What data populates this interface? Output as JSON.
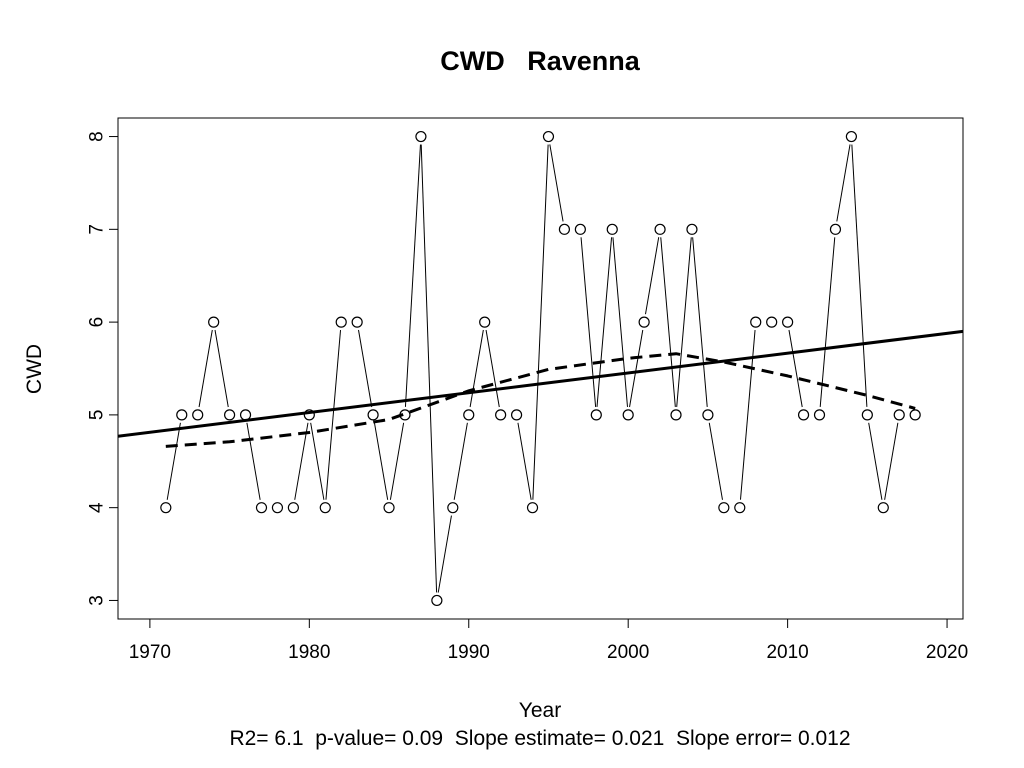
{
  "chart_data": {
    "type": "line",
    "title": "CWD   Ravenna",
    "xlabel": "Year",
    "ylabel": "CWD",
    "xlim": [
      1968,
      2021
    ],
    "ylim": [
      2.8,
      8.2
    ],
    "x_ticks": [
      1970,
      1980,
      1990,
      2000,
      2010,
      2020
    ],
    "y_ticks": [
      3,
      4,
      5,
      6,
      7,
      8
    ],
    "grid": false,
    "legend": "none",
    "series": [
      {
        "style": "points-and-lines",
        "x": [
          1971,
          1972,
          1973,
          1974,
          1975,
          1976,
          1977,
          1978,
          1979,
          1980,
          1981,
          1982,
          1983,
          1984,
          1985,
          1986,
          1987,
          1988,
          1989,
          1990,
          1991,
          1992,
          1993,
          1994,
          1995,
          1996,
          1997,
          1998,
          1999,
          2000,
          2001,
          2002,
          2003,
          2004,
          2005,
          2006,
          2007,
          2008,
          2009,
          2010,
          2011,
          2012,
          2013,
          2014,
          2015,
          2016,
          2017,
          2018
        ],
        "values": [
          4,
          5,
          5,
          6,
          5,
          5,
          4,
          4,
          4,
          5,
          4,
          6,
          6,
          5,
          4,
          5,
          8,
          3,
          4,
          5,
          6,
          5,
          5,
          4,
          8,
          7,
          7,
          5,
          7,
          5,
          6,
          7,
          5,
          7,
          5,
          4,
          4,
          6,
          6,
          6,
          5,
          5,
          7,
          8,
          5,
          4,
          5,
          5
        ]
      },
      {
        "style": "linear-trend-solid",
        "x": [
          1968,
          2021
        ],
        "values": [
          4.77,
          5.9
        ]
      },
      {
        "style": "smooth-dashed",
        "x": [
          1971,
          1975,
          1980,
          1985,
          1990,
          1995,
          2000,
          2003,
          2006,
          2010,
          2015,
          2018
        ],
        "values": [
          4.66,
          4.71,
          4.81,
          4.95,
          5.26,
          5.49,
          5.61,
          5.66,
          5.57,
          5.42,
          5.21,
          5.07
        ]
      }
    ],
    "stats_text": "R2= 6.1  p-value= 0.09  Slope estimate= 0.021  Slope error= 0.012"
  }
}
